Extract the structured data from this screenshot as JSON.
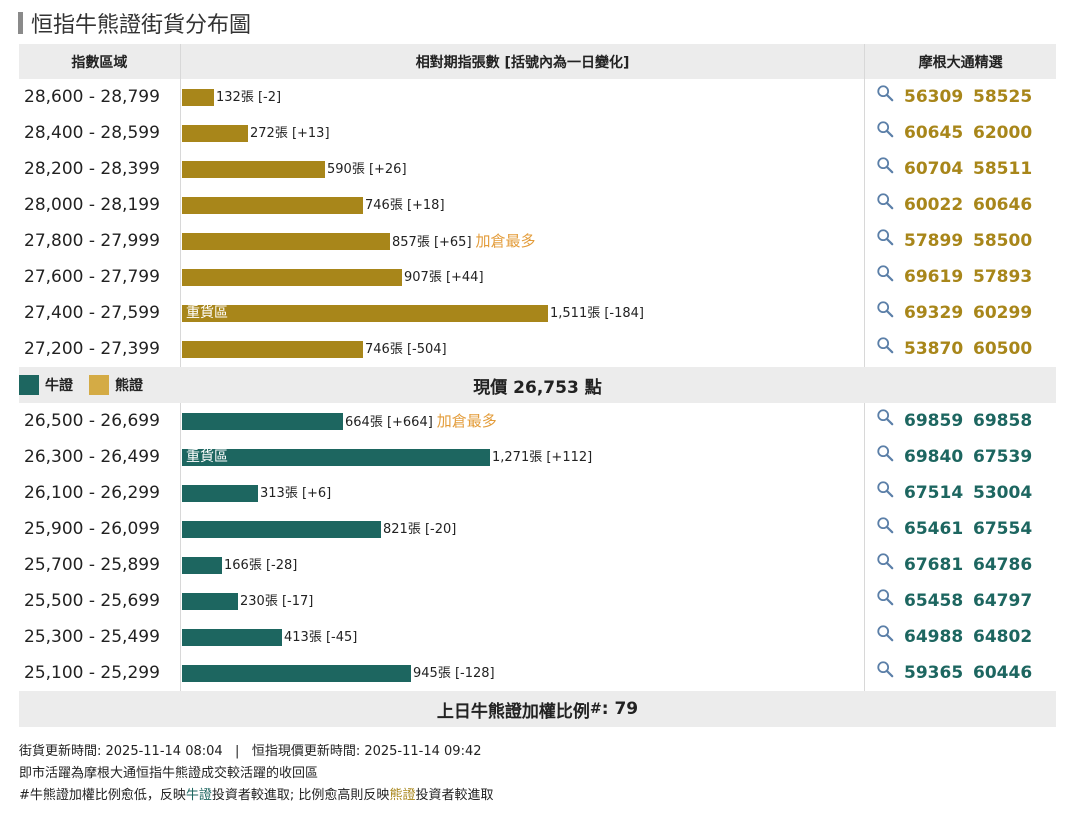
{
  "title": "恒指牛熊證街貨分布圖",
  "header": {
    "col1": "指數區域",
    "col2": "相對期指張數 [括號內為一日變化]",
    "col3": "摩根大通精選"
  },
  "legend": {
    "bull": "牛證",
    "bear": "熊證"
  },
  "current_price": "現價 26,753 點",
  "footer_ratio": {
    "label": "上日牛熊證加權比例",
    "marker": "#",
    "value": ": 79"
  },
  "notes": {
    "line1": "街貨更新時間: 2025-11-14 08:04   |   恒指現價更新時間: 2025-11-14 09:42",
    "line2": "即市活躍為摩根大通恒指牛熊證成交較活躍的收回區",
    "line3_a": "#牛熊證加權比例愈低，反映",
    "line3_bull": "牛證",
    "line3_b": "投資者較進取; 比例愈高則反映",
    "line3_bear": "熊證",
    "line3_c": "投資者較進取"
  },
  "colors": {
    "bull": "#1d6660",
    "bear": "#a8861a",
    "note": "#e39c3a",
    "header_bg": "#ececec"
  },
  "icons": {
    "lookup": "magnifier-icon"
  },
  "chart_data": {
    "type": "bar",
    "orientation": "horizontal",
    "xlim": [
      0,
      1550
    ],
    "bear": [
      {
        "range": "28,600 - 28,799",
        "value": 132,
        "label": "132張 [-2]",
        "change": -2,
        "codes": [
          "56309",
          "58525"
        ]
      },
      {
        "range": "28,400 - 28,599",
        "value": 272,
        "label": "272張 [+13]",
        "change": 13,
        "codes": [
          "60645",
          "62000"
        ]
      },
      {
        "range": "28,200 - 28,399",
        "value": 590,
        "label": "590張 [+26]",
        "change": 26,
        "codes": [
          "60704",
          "58511"
        ]
      },
      {
        "range": "28,000 - 28,199",
        "value": 746,
        "label": "746張 [+18]",
        "change": 18,
        "codes": [
          "60022",
          "60646"
        ]
      },
      {
        "range": "27,800 - 27,999",
        "value": 857,
        "label": "857張 [+65]",
        "change": 65,
        "note": "加倉最多",
        "codes": [
          "57899",
          "58500"
        ]
      },
      {
        "range": "27,600 - 27,799",
        "value": 907,
        "label": "907張 [+44]",
        "change": 44,
        "codes": [
          "69619",
          "57893"
        ]
      },
      {
        "range": "27,400 - 27,599",
        "value": 1511,
        "label": "1,511張 [-184]",
        "change": -184,
        "inlabel": "重貨區",
        "codes": [
          "69329",
          "60299"
        ]
      },
      {
        "range": "27,200 - 27,399",
        "value": 746,
        "label": "746張 [-504]",
        "change": -504,
        "codes": [
          "53870",
          "60500"
        ]
      }
    ],
    "bull": [
      {
        "range": "26,500 - 26,699",
        "value": 664,
        "label": "664張 [+664]",
        "change": 664,
        "note": "加倉最多",
        "codes": [
          "69859",
          "69858"
        ]
      },
      {
        "range": "26,300 - 26,499",
        "value": 1271,
        "label": "1,271張 [+112]",
        "change": 112,
        "inlabel": "重貨區",
        "codes": [
          "69840",
          "67539"
        ]
      },
      {
        "range": "26,100 - 26,299",
        "value": 313,
        "label": "313張 [+6]",
        "change": 6,
        "codes": [
          "67514",
          "53004"
        ]
      },
      {
        "range": "25,900 - 26,099",
        "value": 821,
        "label": "821張 [-20]",
        "change": -20,
        "codes": [
          "65461",
          "67554"
        ]
      },
      {
        "range": "25,700 - 25,899",
        "value": 166,
        "label": "166張 [-28]",
        "change": -28,
        "codes": [
          "67681",
          "64786"
        ]
      },
      {
        "range": "25,500 - 25,699",
        "value": 230,
        "label": "230張 [-17]",
        "change": -17,
        "codes": [
          "65458",
          "64797"
        ]
      },
      {
        "range": "25,300 - 25,499",
        "value": 413,
        "label": "413張 [-45]",
        "change": -45,
        "codes": [
          "64988",
          "64802"
        ]
      },
      {
        "range": "25,100 - 25,299",
        "value": 945,
        "label": "945張 [-128]",
        "change": -128,
        "codes": [
          "59365",
          "60446"
        ]
      }
    ]
  }
}
